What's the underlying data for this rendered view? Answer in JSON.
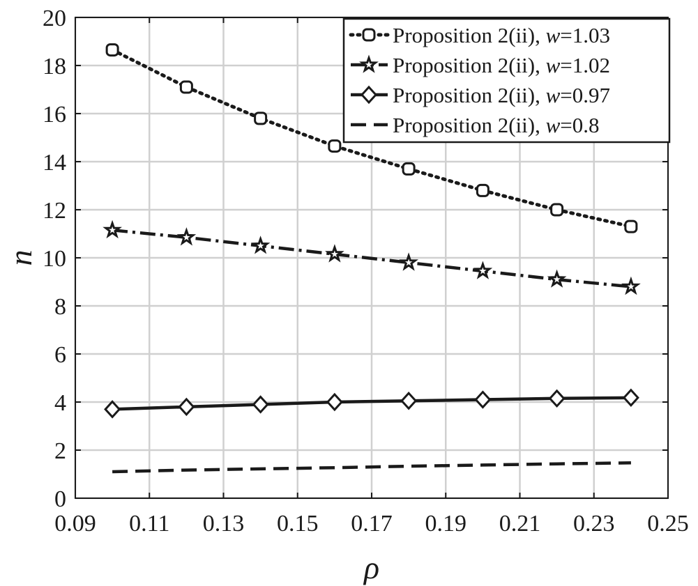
{
  "chart_data": {
    "type": "line",
    "xlabel": "ρ",
    "ylabel": "n",
    "xlim": [
      0.09,
      0.25
    ],
    "ylim": [
      0,
      20
    ],
    "x_ticks": [
      "0.09",
      "0.11",
      "0.13",
      "0.15",
      "0.17",
      "0.19",
      "0.21",
      "0.23",
      "0.25"
    ],
    "y_ticks": [
      "0",
      "2",
      "4",
      "6",
      "8",
      "10",
      "12",
      "14",
      "16",
      "18",
      "20"
    ],
    "grid": true,
    "legend_position": "top-right",
    "x": [
      0.1,
      0.12,
      0.14,
      0.16,
      0.18,
      0.2,
      0.22,
      0.24
    ],
    "series": [
      {
        "label_prefix": "Proposition 2(ii), ",
        "label_var": "w",
        "label_value": "=1.03",
        "values": [
          18.65,
          17.1,
          15.8,
          14.65,
          13.7,
          12.8,
          12.0,
          11.3
        ],
        "line_style": "dotted",
        "marker": "square-circle"
      },
      {
        "label_prefix": "Proposition 2(ii), ",
        "label_var": "w",
        "label_value": "=1.02",
        "values": [
          11.15,
          10.85,
          10.5,
          10.15,
          9.8,
          9.45,
          9.1,
          8.8
        ],
        "line_style": "dashdot",
        "marker": "star"
      },
      {
        "label_prefix": "Proposition 2(ii), ",
        "label_var": "w",
        "label_value": "=0.97",
        "values": [
          3.7,
          3.8,
          3.9,
          4.0,
          4.05,
          4.1,
          4.15,
          4.18
        ],
        "line_style": "solid",
        "marker": "diamond"
      },
      {
        "label_prefix": "Proposition 2(ii), ",
        "label_var": "w",
        "label_value": "=0.8",
        "values": [
          1.1,
          1.17,
          1.22,
          1.27,
          1.33,
          1.38,
          1.43,
          1.47
        ],
        "line_style": "dashed",
        "marker": "none"
      }
    ]
  }
}
